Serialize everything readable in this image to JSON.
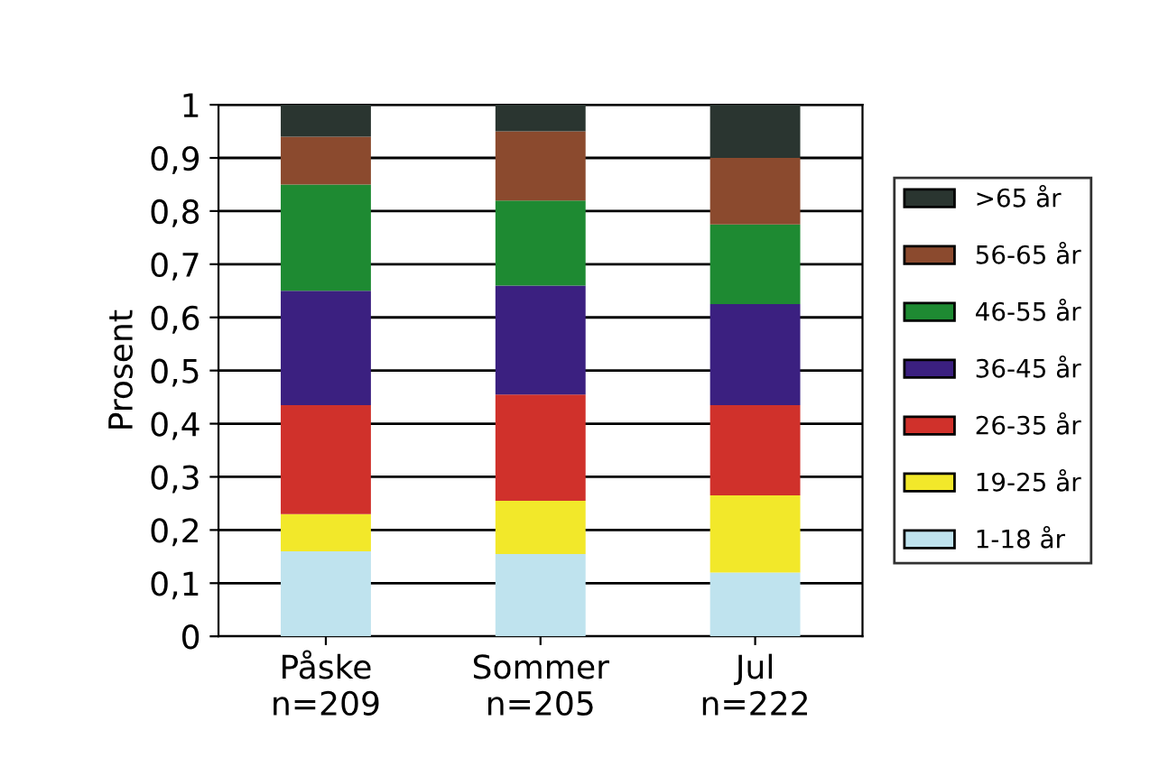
{
  "chart_data": {
    "type": "bar",
    "stacked": true,
    "ylabel": "Prosent",
    "categories": [
      "Påske\nn=209",
      "Sommer\nn=205",
      "Jul\nn=222"
    ],
    "series": [
      {
        "name": "1-18 år",
        "color": "#bfe3ee",
        "values": [
          0.16,
          0.155,
          0.12
        ]
      },
      {
        "name": "19-25 år",
        "color": "#f2e82a",
        "values": [
          0.07,
          0.1,
          0.145
        ]
      },
      {
        "name": "26-35 år",
        "color": "#d0312b",
        "values": [
          0.205,
          0.2,
          0.17
        ]
      },
      {
        "name": "36-45 år",
        "color": "#3b2080",
        "values": [
          0.215,
          0.205,
          0.19
        ]
      },
      {
        "name": "46-55 år",
        "color": "#1e8a32",
        "values": [
          0.2,
          0.16,
          0.15
        ]
      },
      {
        "name": "56-65 år",
        "color": "#8b4a2e",
        "values": [
          0.09,
          0.13,
          0.125
        ]
      },
      {
        "name": ">65 år",
        "color": "#2a3530",
        "values": [
          0.06,
          0.05,
          0.1
        ]
      }
    ],
    "ylim": [
      0,
      1
    ],
    "yticks": [
      {
        "value": 0,
        "label": "0"
      },
      {
        "value": 0.1,
        "label": "0,1"
      },
      {
        "value": 0.2,
        "label": "0,2"
      },
      {
        "value": 0.3,
        "label": "0,3"
      },
      {
        "value": 0.4,
        "label": "0,4"
      },
      {
        "value": 0.5,
        "label": "0,5"
      },
      {
        "value": 0.6,
        "label": "0,6"
      },
      {
        "value": 0.7,
        "label": "0,7"
      },
      {
        "value": 0.8,
        "label": "0,8"
      },
      {
        "value": 0.9,
        "label": "0,9"
      },
      {
        "value": 1,
        "label": "1"
      }
    ],
    "grid": "y",
    "legend": "right"
  }
}
